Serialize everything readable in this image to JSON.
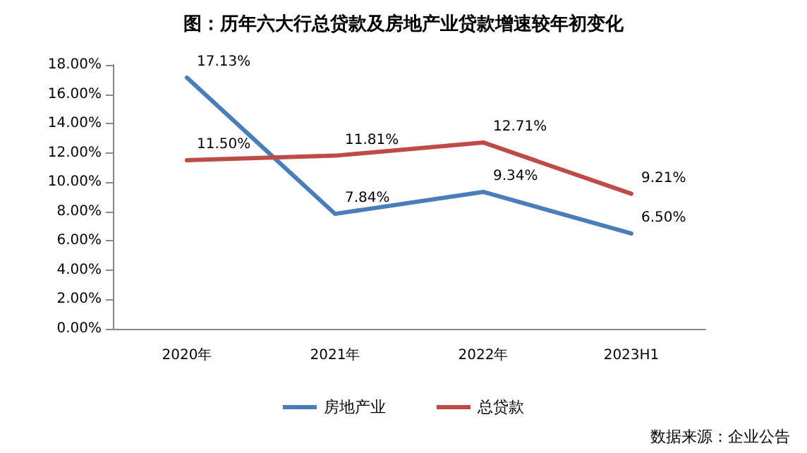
{
  "chart_data": {
    "type": "line",
    "title": "图：历年六大行总贷款及房地产业贷款增速较年初变化",
    "categories": [
      "2020年",
      "2021年",
      "2022年",
      "2023H1"
    ],
    "series": [
      {
        "name": "房地产业",
        "color": "#4a7ebb",
        "values": [
          17.13,
          7.84,
          9.34,
          6.5
        ],
        "value_labels": [
          "17.13%",
          "7.84%",
          "9.34%",
          "6.50%"
        ]
      },
      {
        "name": "总贷款",
        "color": "#be4b48",
        "values": [
          11.5,
          11.81,
          12.71,
          9.21
        ],
        "value_labels": [
          "11.50%",
          "11.81%",
          "12.71%",
          "9.21%"
        ]
      }
    ],
    "ylim": [
      0,
      18
    ],
    "yticks": [
      {
        "value": 0,
        "label": "0.00%"
      },
      {
        "value": 2,
        "label": "2.00%"
      },
      {
        "value": 4,
        "label": "4.00%"
      },
      {
        "value": 6,
        "label": "6.00%"
      },
      {
        "value": 8,
        "label": "8.00%"
      },
      {
        "value": 10,
        "label": "10.00%"
      },
      {
        "value": 12,
        "label": "12.00%"
      },
      {
        "value": 14,
        "label": "14.00%"
      },
      {
        "value": 16,
        "label": "16.00%"
      },
      {
        "value": 18,
        "label": "18.00%"
      }
    ],
    "grid": false,
    "legend": "bottom",
    "marker": "none",
    "line_style": "solid",
    "annotations": [
      "数据来源：企业公告"
    ]
  }
}
